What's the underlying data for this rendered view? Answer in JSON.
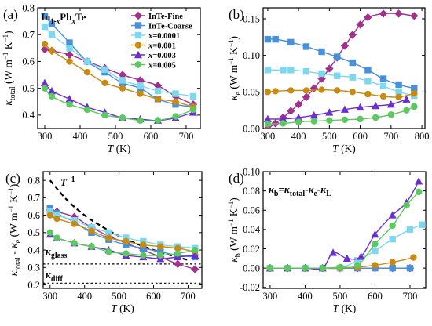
{
  "colors": {
    "InTe-Fine": "#a0328c",
    "InTe-Coarse": "#4a90d9",
    "x=0.0001": "#7fd7ee",
    "x=0.001": "#c88a12",
    "x=0.003": "#6a2fd0",
    "x=0.005": "#5bc860"
  },
  "chart_data": [
    {
      "panel": "(a)",
      "type": "line",
      "title": "",
      "annotation": "In1-xPbxTe",
      "xlabel": "T (K)",
      "ylabel": "κtotal (W m−1 K−1)",
      "xlim": [
        280,
        740
      ],
      "ylim": [
        0.35,
        0.8
      ],
      "xticks": [
        300,
        400,
        500,
        600,
        700
      ],
      "yticks": [
        0.4,
        0.5,
        0.6,
        0.7,
        0.8
      ],
      "legend_position": "top-right",
      "series": [
        {
          "name": "InTe-Fine",
          "marker": "diamond",
          "x": [
            300,
            320,
            370,
            420,
            470,
            520,
            570,
            620,
            670,
            720
          ],
          "y": [
            0.645,
            0.64,
            0.625,
            0.6,
            0.575,
            0.55,
            0.53,
            0.51,
            0.47,
            0.44
          ]
        },
        {
          "name": "InTe-Coarse",
          "marker": "square",
          "x": [
            300,
            320,
            370,
            420,
            470,
            520,
            570,
            620,
            670,
            720
          ],
          "y": [
            0.77,
            0.74,
            0.67,
            0.6,
            0.56,
            0.52,
            0.5,
            0.46,
            0.44,
            0.43
          ]
        },
        {
          "name": "x=0.0001",
          "marker": "square",
          "x": [
            300,
            320,
            370,
            420,
            470,
            520,
            570,
            620,
            670,
            720
          ],
          "y": [
            0.73,
            0.7,
            0.65,
            0.6,
            0.57,
            0.53,
            0.51,
            0.49,
            0.48,
            0.47
          ]
        },
        {
          "name": "x=0.001",
          "marker": "circle",
          "x": [
            300,
            320,
            370,
            420,
            470,
            520,
            570,
            620,
            670,
            720
          ],
          "y": [
            0.665,
            0.64,
            0.6,
            0.56,
            0.52,
            0.5,
            0.48,
            0.46,
            0.45,
            0.43
          ]
        },
        {
          "name": "x=0.003",
          "marker": "triangle",
          "x": [
            300,
            320,
            370,
            420,
            470,
            520,
            570,
            620,
            670,
            720
          ],
          "y": [
            0.52,
            0.49,
            0.46,
            0.43,
            0.41,
            0.39,
            0.385,
            0.38,
            0.39,
            0.41
          ]
        },
        {
          "name": "x=0.005",
          "marker": "circle",
          "x": [
            300,
            320,
            370,
            420,
            470,
            520,
            570,
            620,
            670,
            720
          ],
          "y": [
            0.5,
            0.47,
            0.44,
            0.42,
            0.4,
            0.39,
            0.38,
            0.38,
            0.395,
            0.42
          ]
        }
      ]
    },
    {
      "panel": "(b)",
      "type": "line",
      "title": "",
      "xlabel": "T (K)",
      "ylabel": "κe (W m−1 K−1)",
      "xlim": [
        285,
        810
      ],
      "ylim": [
        0,
        0.165
      ],
      "xticks": [
        300,
        400,
        500,
        600,
        700,
        800
      ],
      "yticks": [
        0.0,
        0.05,
        0.1,
        0.15
      ],
      "series": [
        {
          "name": "InTe-Fine",
          "marker": "diamond",
          "x": [
            300,
            325,
            350,
            375,
            400,
            425,
            450,
            475,
            500,
            525,
            550,
            575,
            600,
            625,
            675,
            725,
            775
          ],
          "y": [
            0.0,
            0.007,
            0.015,
            0.024,
            0.033,
            0.043,
            0.055,
            0.068,
            0.082,
            0.097,
            0.113,
            0.128,
            0.142,
            0.152,
            0.157,
            0.157,
            0.154
          ]
        },
        {
          "name": "InTe-Coarse",
          "marker": "square",
          "x": [
            300,
            325,
            375,
            425,
            475,
            525,
            575,
            625,
            675,
            725,
            775
          ],
          "y": [
            0.122,
            0.122,
            0.118,
            0.112,
            0.105,
            0.098,
            0.09,
            0.08,
            0.068,
            0.06,
            0.055
          ]
        },
        {
          "name": "x=0.0001",
          "marker": "square",
          "x": [
            300,
            350,
            375,
            425,
            475,
            525,
            575,
            625,
            675,
            725,
            775
          ],
          "y": [
            0.08,
            0.08,
            0.08,
            0.078,
            0.075,
            0.072,
            0.07,
            0.065,
            0.058,
            0.05,
            0.045
          ]
        },
        {
          "name": "x=0.001",
          "marker": "circle",
          "x": [
            300,
            325,
            375,
            425,
            475,
            525,
            575,
            625,
            675,
            725,
            775
          ],
          "y": [
            0.05,
            0.051,
            0.052,
            0.052,
            0.053,
            0.052,
            0.05,
            0.047,
            0.044,
            0.043,
            0.048
          ]
        },
        {
          "name": "x=0.003",
          "marker": "triangle",
          "x": [
            300,
            350,
            400,
            450,
            500,
            550,
            600,
            650,
            700,
            750
          ],
          "y": [
            0.013,
            0.013,
            0.015,
            0.018,
            0.022,
            0.026,
            0.029,
            0.031,
            0.033,
            0.04
          ]
        },
        {
          "name": "x=0.005",
          "marker": "circle",
          "x": [
            300,
            350,
            400,
            450,
            500,
            550,
            600,
            650,
            700,
            750,
            775
          ],
          "y": [
            0.006,
            0.007,
            0.009,
            0.01,
            0.011,
            0.012,
            0.013,
            0.015,
            0.019,
            0.025,
            0.03
          ]
        }
      ]
    },
    {
      "panel": "(c)",
      "type": "line",
      "title": "",
      "xlabel": "T (K)",
      "ylabel": "κtotal - κe (W m−1 K−1)",
      "xlim": [
        280,
        740
      ],
      "ylim": [
        0.18,
        0.85
      ],
      "xticks": [
        300,
        400,
        500,
        600,
        700
      ],
      "yticks": [
        0.2,
        0.3,
        0.4,
        0.5,
        0.6,
        0.7,
        0.8
      ],
      "annotations": {
        "inverse_t": "T−1",
        "glass": "κglass",
        "diff": "κdiff"
      },
      "reference_lines": {
        "kappa_glass": 0.32,
        "kappa_diff": 0.21
      },
      "t_inverse_curve": {
        "x": [
          300,
          350,
          400,
          450,
          500,
          550,
          600,
          650,
          700
        ],
        "y": [
          0.8,
          0.685,
          0.6,
          0.535,
          0.48,
          0.437,
          0.4,
          0.37,
          0.343
        ]
      },
      "series": [
        {
          "name": "InTe-Fine",
          "marker": "diamond",
          "x": [
            300,
            320,
            370,
            420,
            470,
            520,
            570,
            620,
            670,
            720
          ],
          "y": [
            0.63,
            0.62,
            0.59,
            0.53,
            0.48,
            0.44,
            0.4,
            0.36,
            0.32,
            0.29
          ]
        },
        {
          "name": "InTe-Coarse",
          "marker": "square",
          "x": [
            300,
            320,
            370,
            420,
            470,
            520,
            570,
            620,
            670,
            720
          ],
          "y": [
            0.64,
            0.61,
            0.56,
            0.5,
            0.46,
            0.43,
            0.41,
            0.39,
            0.37,
            0.36
          ]
        },
        {
          "name": "x=0.0001",
          "marker": "square",
          "x": [
            300,
            320,
            370,
            420,
            470,
            520,
            570,
            620,
            670,
            720
          ],
          "y": [
            0.62,
            0.6,
            0.57,
            0.53,
            0.5,
            0.47,
            0.45,
            0.43,
            0.42,
            0.41
          ]
        },
        {
          "name": "x=0.001",
          "marker": "circle",
          "x": [
            300,
            320,
            370,
            420,
            470,
            520,
            570,
            620,
            670,
            720
          ],
          "y": [
            0.6,
            0.58,
            0.55,
            0.51,
            0.47,
            0.45,
            0.43,
            0.42,
            0.41,
            0.39
          ]
        },
        {
          "name": "x=0.003",
          "marker": "triangle",
          "x": [
            300,
            320,
            370,
            420,
            470,
            520,
            570,
            620,
            670,
            720
          ],
          "y": [
            0.49,
            0.47,
            0.44,
            0.42,
            0.4,
            0.37,
            0.36,
            0.35,
            0.36,
            0.37
          ]
        },
        {
          "name": "x=0.005",
          "marker": "circle",
          "x": [
            300,
            320,
            370,
            420,
            470,
            520,
            570,
            620,
            670,
            720
          ],
          "y": [
            0.5,
            0.47,
            0.44,
            0.42,
            0.39,
            0.38,
            0.37,
            0.37,
            0.38,
            0.4
          ]
        }
      ]
    },
    {
      "panel": "(d)",
      "type": "line",
      "title": "",
      "annotation": "κb=κtotal-κe-κL",
      "xlabel": "T (K)",
      "ylabel": "κb (W m−1 K−1)",
      "xlim": [
        280,
        745
      ],
      "ylim": [
        -0.021,
        0.1
      ],
      "xticks": [
        300,
        400,
        500,
        600,
        700
      ],
      "yticks": [
        -0.02,
        0.0,
        0.02,
        0.04,
        0.06,
        0.08,
        0.1
      ],
      "series": [
        {
          "name": "InTe-Fine",
          "marker": "diamond",
          "x": [
            300,
            350,
            400,
            450,
            500,
            550,
            600,
            650,
            700
          ],
          "y": [
            0.0,
            0.0,
            0.0,
            0.0,
            0.0,
            0.0,
            0.0,
            0.0,
            0.0
          ]
        },
        {
          "name": "InTe-Coarse",
          "marker": "square",
          "x": [
            300,
            350,
            400,
            450,
            500,
            550,
            600,
            650,
            700
          ],
          "y": [
            0.0,
            0.0,
            0.0,
            0.0,
            0.0,
            0.0,
            0.0,
            0.0,
            0.0
          ]
        },
        {
          "name": "x=0.0001",
          "marker": "square",
          "x": [
            300,
            350,
            400,
            450,
            500,
            550,
            600,
            650,
            700,
            735
          ],
          "y": [
            0.0,
            0.0,
            0.0,
            0.0,
            0.0,
            0.008,
            0.018,
            0.03,
            0.04,
            0.045
          ]
        },
        {
          "name": "x=0.001",
          "marker": "circle",
          "x": [
            300,
            350,
            400,
            450,
            500,
            550,
            600,
            650,
            710
          ],
          "y": [
            0.0,
            0.0,
            0.0,
            0.0,
            0.0,
            0.001,
            0.003,
            0.006,
            0.011
          ]
        },
        {
          "name": "x=0.003",
          "marker": "triangle",
          "x": [
            300,
            350,
            400,
            450,
            480,
            520,
            560,
            600,
            650,
            690,
            725
          ],
          "y": [
            0.0,
            0.0,
            0.0,
            0.0,
            0.016,
            0.01,
            0.012,
            0.035,
            0.055,
            0.068,
            0.09
          ]
        },
        {
          "name": "x=0.005",
          "marker": "circle",
          "x": [
            300,
            350,
            400,
            450,
            500,
            550,
            600,
            650,
            690,
            725
          ],
          "y": [
            0.0,
            0.0,
            0.0,
            0.0,
            0.001,
            0.003,
            0.025,
            0.044,
            0.065,
            0.079
          ]
        }
      ]
    }
  ]
}
